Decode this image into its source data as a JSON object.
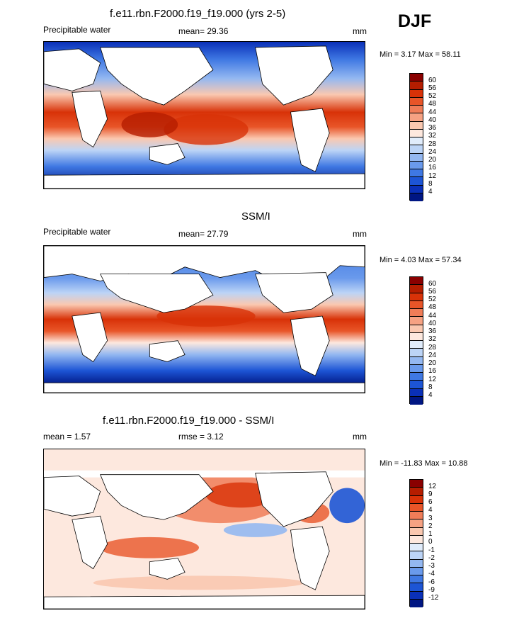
{
  "season": "DJF",
  "panels": [
    {
      "title": "f.e11.rbn.F2000.f19_f19.000 (yrs 2-5)",
      "left_label": "Precipitable water",
      "mean_text": "mean=  29.36",
      "rmse_text": "",
      "units": "mm",
      "minmax_text": "Min =   3.17 Max =  58.11"
    },
    {
      "title": "SSM/I",
      "left_label": "Precipitable water",
      "mean_text": "mean=  27.79",
      "rmse_text": "",
      "units": "mm",
      "minmax_text": "Min =   4.03 Max =  57.34"
    },
    {
      "title": "f.e11.rbn.F2000.f19_f19.000 - SSM/I",
      "left_label": "mean =   1.57",
      "mean_text": "",
      "rmse_text": "rmse =   3.12",
      "units": "mm",
      "minmax_text": "Min = -11.83 Max =  10.88"
    }
  ],
  "colorbar_abs": {
    "labels": [
      "60",
      "56",
      "52",
      "48",
      "44",
      "40",
      "36",
      "32",
      "28",
      "24",
      "20",
      "16",
      "12",
      "8",
      "4"
    ],
    "colors": [
      "#8a0000",
      "#b51d00",
      "#d83208",
      "#e85528",
      "#f07d58",
      "#f6a283",
      "#fac8b0",
      "#fde8de",
      "#e0ecfb",
      "#bcd4f6",
      "#94b8f1",
      "#6a9aec",
      "#3f78e3",
      "#1d55d5",
      "#0a30b8",
      "#001683"
    ]
  },
  "colorbar_diff": {
    "labels": [
      "12",
      "9",
      "6",
      "4",
      "3",
      "2",
      "1",
      "0",
      "-1",
      "-2",
      "-3",
      "-4",
      "-6",
      "-9",
      "-12"
    ],
    "colors": [
      "#8a0000",
      "#b51d00",
      "#d83208",
      "#e85528",
      "#f07d58",
      "#f6a283",
      "#fac8b0",
      "#fde8de",
      "#e0ecfb",
      "#bcd4f6",
      "#94b8f1",
      "#6a9aec",
      "#3f78e3",
      "#1d55d5",
      "#0a30b8",
      "#001683"
    ]
  }
}
